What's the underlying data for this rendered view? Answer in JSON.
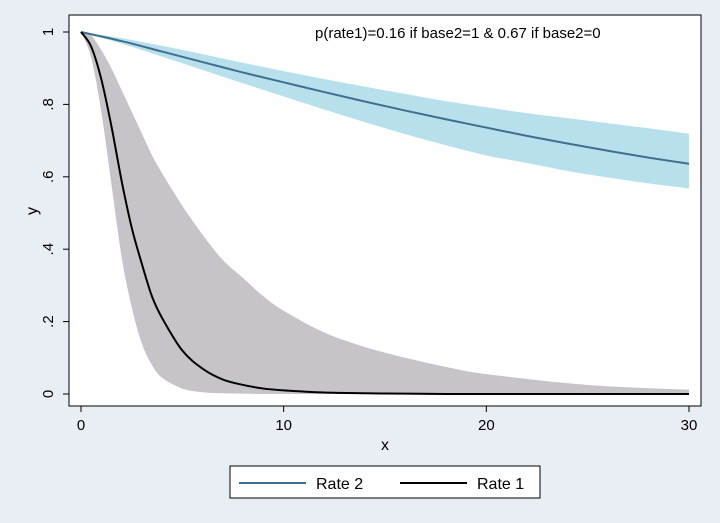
{
  "chart_data": {
    "type": "line",
    "xlabel": "x",
    "ylabel": "y",
    "xlim": [
      0,
      30
    ],
    "ylim": [
      0,
      1
    ],
    "x_ticks": [
      0,
      10,
      20,
      30
    ],
    "x_tick_labels": [
      "0",
      "10",
      "20",
      "30"
    ],
    "y_ticks": [
      0,
      0.2,
      0.4,
      0.6,
      0.8,
      1
    ],
    "y_tick_labels": [
      "0",
      ".2",
      ".4",
      ".6",
      ".8",
      "1"
    ],
    "annotation": "p(rate1)=0.16 if base2=1 & 0.67 if base2=0",
    "grid": false,
    "legend_position": "bottom",
    "series": [
      {
        "name": "Rate 2",
        "color": "#3f6f8f",
        "band_color": "#b8e0ec",
        "x": [
          0,
          2,
          4,
          6,
          8,
          10,
          12,
          14,
          16,
          18,
          20,
          22,
          24,
          26,
          28,
          30
        ],
        "y": [
          1.0,
          0.975,
          0.946,
          0.917,
          0.888,
          0.861,
          0.834,
          0.808,
          0.783,
          0.759,
          0.736,
          0.713,
          0.692,
          0.672,
          0.653,
          0.636
        ],
        "lower": [
          1.0,
          0.968,
          0.932,
          0.895,
          0.858,
          0.822,
          0.786,
          0.751,
          0.718,
          0.687,
          0.659,
          0.638,
          0.616,
          0.598,
          0.582,
          0.568
        ],
        "upper": [
          1.0,
          0.983,
          0.962,
          0.939,
          0.915,
          0.892,
          0.87,
          0.849,
          0.829,
          0.809,
          0.792,
          0.776,
          0.762,
          0.748,
          0.734,
          0.719
        ]
      },
      {
        "name": "Rate 1",
        "color": "#000000",
        "band_color": "#c6c4c8",
        "x": [
          0,
          0.5,
          1,
          1.5,
          2,
          2.5,
          3,
          3.5,
          4,
          5,
          6,
          7,
          8,
          9,
          10,
          12,
          14,
          16,
          18,
          20,
          25,
          30
        ],
        "y": [
          1.0,
          0.96,
          0.87,
          0.74,
          0.59,
          0.46,
          0.36,
          0.27,
          0.21,
          0.12,
          0.07,
          0.04,
          0.025,
          0.015,
          0.01,
          0.004,
          0.002,
          0.001,
          0.0,
          0.0,
          0.0,
          0.0
        ],
        "lower": [
          1.0,
          0.93,
          0.78,
          0.58,
          0.38,
          0.24,
          0.14,
          0.08,
          0.045,
          0.015,
          0.005,
          0.002,
          0.001,
          0.0,
          0.0,
          0.0,
          0.0,
          0.0,
          0.0,
          0.0,
          0.0,
          0.0
        ],
        "upper": [
          1.0,
          0.99,
          0.95,
          0.9,
          0.84,
          0.78,
          0.72,
          0.66,
          0.61,
          0.52,
          0.44,
          0.37,
          0.32,
          0.27,
          0.23,
          0.17,
          0.13,
          0.1,
          0.075,
          0.055,
          0.025,
          0.012
        ]
      }
    ]
  }
}
